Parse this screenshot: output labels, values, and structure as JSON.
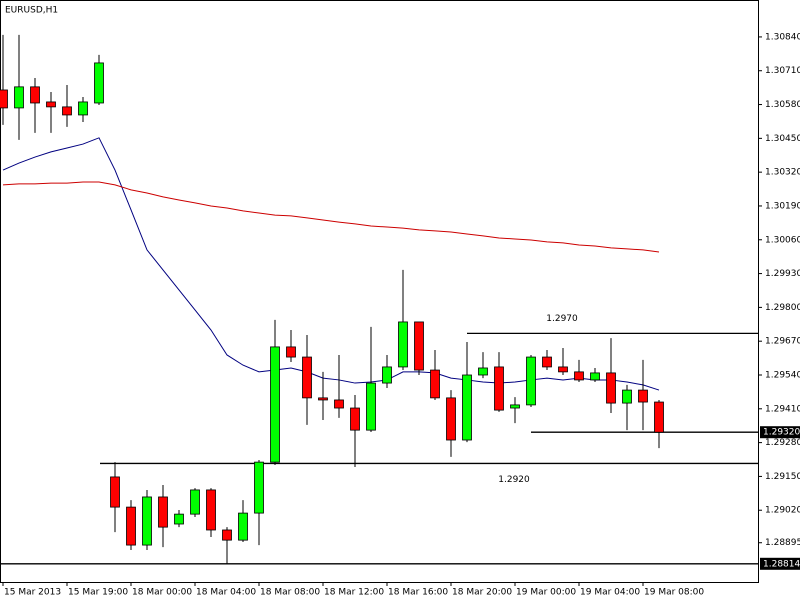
{
  "chart_data": {
    "type": "candlestick",
    "title": "EURUSD,H1",
    "categories": [
      "15 Mar 2013",
      null,
      null,
      null,
      "15 Mar 19:00",
      null,
      null,
      null,
      "18 Mar 00:00",
      null,
      null,
      null,
      "18 Mar 04:00",
      null,
      null,
      null,
      "18 Mar 08:00",
      null,
      null,
      null,
      "18 Mar 12:00",
      null,
      null,
      null,
      "18 Mar 16:00",
      null,
      null,
      null,
      "18 Mar 20:00",
      null,
      null,
      null,
      "19 Mar 00:00",
      null,
      null,
      null,
      "19 Mar 04:00",
      null,
      null,
      null,
      "19 Mar 08:00",
      null
    ],
    "open": [
      1.30636,
      1.30567,
      1.30648,
      1.3059,
      1.30571,
      1.3054,
      1.30586,
      1.29148,
      1.29032,
      1.28886,
      1.29071,
      1.28967,
      1.29005,
      1.29098,
      1.28944,
      1.28905,
      1.29009,
      1.29205,
      1.29648,
      1.29609,
      1.29452,
      1.29444,
      1.29413,
      1.29328,
      1.29509,
      1.29571,
      1.29744,
      1.29559,
      1.29452,
      1.2929,
      1.2954,
      1.29571,
      1.29413,
      1.29425,
      1.29609,
      1.29571,
      1.29552,
      1.29521,
      1.29548,
      1.29432,
      1.29482,
      1.29436
    ],
    "high": [
      1.30848,
      1.30848,
      1.30682,
      1.30628,
      1.30655,
      1.30609,
      1.30771,
      1.29205,
      1.29059,
      1.29098,
      1.29117,
      1.29021,
      1.29105,
      1.29105,
      1.28955,
      1.29059,
      1.29213,
      1.29752,
      1.29713,
      1.29694,
      1.29552,
      1.29617,
      1.29463,
      1.29725,
      1.29617,
      1.29944,
      1.29744,
      1.29636,
      1.29482,
      1.29667,
      1.29628,
      1.29628,
      1.29455,
      1.29617,
      1.29636,
      1.29644,
      1.29598,
      1.29567,
      1.29682,
      1.29502,
      1.29598,
      1.29444
    ],
    "low": [
      1.30502,
      1.30444,
      1.30471,
      1.30471,
      1.30494,
      1.30513,
      1.30578,
      1.28936,
      1.28867,
      1.28867,
      1.28878,
      1.28955,
      1.28994,
      1.28917,
      1.28814,
      1.28898,
      1.28886,
      1.29194,
      1.2959,
      1.29348,
      1.29367,
      1.29375,
      1.29186,
      1.29321,
      1.2949,
      1.29559,
      1.2954,
      1.29444,
      1.29225,
      1.29282,
      1.29528,
      1.29398,
      1.29355,
      1.29417,
      1.29559,
      1.2954,
      1.29513,
      1.29513,
      1.29394,
      1.29328,
      1.29328,
      1.29259
    ],
    "close": [
      1.30567,
      1.30648,
      1.30586,
      1.30571,
      1.3054,
      1.3059,
      1.3074,
      1.29032,
      1.28886,
      1.29071,
      1.28955,
      1.29005,
      1.29098,
      1.28944,
      1.28905,
      1.29009,
      1.29205,
      1.29648,
      1.29609,
      1.29452,
      1.29444,
      1.29413,
      1.29328,
      1.29509,
      1.29571,
      1.29744,
      1.29559,
      1.29452,
      1.2929,
      1.2954,
      1.29567,
      1.29405,
      1.29425,
      1.29609,
      1.29571,
      1.29552,
      1.29521,
      1.29548,
      1.29432,
      1.29482,
      1.29436,
      1.2932
    ],
    "up_color": "#00ff00",
    "down_color": "#ff0000",
    "series": [
      {
        "color": "#000080",
        "values": [
          1.30328,
          1.30355,
          1.30378,
          1.30398,
          1.30413,
          1.30428,
          1.30452,
          1.30328,
          1.30175,
          1.30021,
          1.29944,
          1.29867,
          1.2979,
          1.29713,
          1.29617,
          1.29578,
          1.29552,
          1.29559,
          1.29567,
          1.29552,
          1.29528,
          1.29521,
          1.29509,
          1.29513,
          1.29521,
          1.29552,
          1.29552,
          1.29548,
          1.29528,
          1.29521,
          1.29513,
          1.29509,
          1.29513,
          1.29521,
          1.29528,
          1.29521,
          1.29528,
          1.29521,
          1.29521,
          1.29513,
          1.29502,
          1.29482
        ]
      },
      {
        "color": "#cc0000",
        "values": [
          1.30271,
          1.30275,
          1.30275,
          1.30278,
          1.30278,
          1.30282,
          1.30282,
          1.30271,
          1.30252,
          1.3024,
          1.30225,
          1.30213,
          1.30202,
          1.3019,
          1.30182,
          1.30171,
          1.30163,
          1.30155,
          1.30152,
          1.30144,
          1.30136,
          1.30128,
          1.30121,
          1.30113,
          1.30109,
          1.30105,
          1.30098,
          1.30094,
          1.3009,
          1.30082,
          1.30075,
          1.30067,
          1.30063,
          1.30059,
          1.30052,
          1.30048,
          1.3004,
          1.30036,
          1.30029,
          1.30025,
          1.30021,
          1.30013
        ]
      }
    ],
    "ylim": [
      1.28744,
      1.30982
    ],
    "yticks": [
      {
        "value": 1.3084,
        "label": "1.30840"
      },
      {
        "value": 1.3071,
        "label": "1.30710"
      },
      {
        "value": 1.3058,
        "label": "1.30580"
      },
      {
        "value": 1.3045,
        "label": "1.30450"
      },
      {
        "value": 1.3032,
        "label": "1.30320"
      },
      {
        "value": 1.3019,
        "label": "1.30190"
      },
      {
        "value": 1.3006,
        "label": "1.30060"
      },
      {
        "value": 1.2993,
        "label": "1.29930"
      },
      {
        "value": 1.298,
        "label": "1.29800"
      },
      {
        "value": 1.2967,
        "label": "1.29670"
      },
      {
        "value": 1.2954,
        "label": "1.29540"
      },
      {
        "value": 1.2941,
        "label": "1.29410"
      },
      {
        "value": 1.2928,
        "label": "1.29280"
      },
      {
        "value": 1.2915,
        "label": "1.29150"
      },
      {
        "value": 1.2902,
        "label": "1.29020"
      },
      {
        "value": 1.28895,
        "label": "1.28895"
      }
    ],
    "price_markers": [
      {
        "value": 1.2932,
        "label": "1.29320"
      },
      {
        "value": 1.28814,
        "label": "1.28814"
      }
    ],
    "levels": [
      {
        "value": 1.297,
        "label": "1.2970"
      },
      {
        "value": 1.292,
        "label": "1.2920"
      }
    ]
  }
}
